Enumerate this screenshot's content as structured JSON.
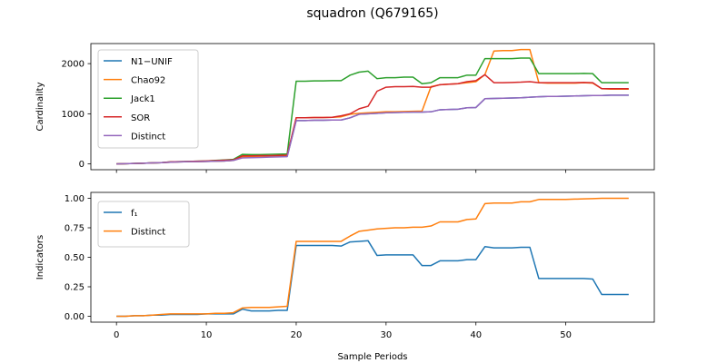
{
  "figure_title": "squadron (Q679165)",
  "chart_data": [
    {
      "type": "line",
      "panel": "top",
      "ylabel": "Cardinality",
      "xlabel": "",
      "xlim": [
        -2.85,
        59.85
      ],
      "ylim": [
        -115,
        2400
      ],
      "xticks": [
        0,
        10,
        20,
        30,
        40,
        50
      ],
      "yticks": [
        0,
        1000,
        2000
      ],
      "ytick_labels": [
        "0",
        "1000",
        "2000"
      ],
      "grid": false,
      "legend_position": "upper-left",
      "x": [
        0,
        1,
        2,
        3,
        4,
        5,
        6,
        7,
        8,
        9,
        10,
        11,
        12,
        13,
        14,
        15,
        16,
        17,
        18,
        19,
        20,
        21,
        22,
        23,
        24,
        25,
        26,
        27,
        28,
        29,
        30,
        31,
        32,
        33,
        34,
        35,
        36,
        37,
        38,
        39,
        40,
        41,
        42,
        43,
        44,
        45,
        46,
        47,
        48,
        49,
        50,
        51,
        52,
        53,
        54,
        55,
        56,
        57
      ],
      "series": [
        {
          "name": "N1−UNIF",
          "color": "#1f77b4",
          "values": [
            0,
            5,
            10,
            15,
            20,
            25,
            35,
            40,
            45,
            45,
            50,
            55,
            60,
            70,
            130,
            135,
            140,
            145,
            150,
            155,
            865,
            865,
            870,
            870,
            875,
            875,
            920,
            990,
            1000,
            1010,
            1020,
            1025,
            1030,
            1035,
            1035,
            1040,
            1080,
            1085,
            1090,
            1120,
            1125,
            1300,
            1305,
            1310,
            1315,
            1320,
            1330,
            1340,
            1345,
            1345,
            1350,
            1355,
            1360,
            1365,
            1365,
            1370,
            1370,
            1370
          ]
        },
        {
          "name": "Chao92",
          "color": "#ff7f0e",
          "values": [
            0,
            5,
            10,
            15,
            20,
            25,
            35,
            40,
            45,
            45,
            50,
            55,
            60,
            70,
            140,
            145,
            150,
            155,
            160,
            165,
            920,
            920,
            925,
            925,
            930,
            940,
            990,
            1010,
            1020,
            1030,
            1040,
            1040,
            1045,
            1050,
            1055,
            1540,
            1580,
            1590,
            1600,
            1620,
            1640,
            1780,
            2250,
            2260,
            2260,
            2280,
            2280,
            1620,
            1610,
            1610,
            1610,
            1610,
            1620,
            1610,
            1500,
            1490,
            1490,
            1490
          ]
        },
        {
          "name": "Jack1",
          "color": "#2ca02c",
          "values": [
            0,
            5,
            10,
            15,
            20,
            25,
            40,
            45,
            50,
            55,
            60,
            70,
            80,
            90,
            190,
            185,
            185,
            190,
            195,
            200,
            1650,
            1650,
            1655,
            1655,
            1660,
            1660,
            1770,
            1830,
            1850,
            1700,
            1720,
            1720,
            1730,
            1730,
            1600,
            1620,
            1720,
            1720,
            1720,
            1770,
            1770,
            2100,
            2100,
            2100,
            2100,
            2110,
            2110,
            1800,
            1800,
            1800,
            1800,
            1800,
            1805,
            1800,
            1620,
            1620,
            1620,
            1620
          ]
        },
        {
          "name": "SOR",
          "color": "#d62728",
          "values": [
            0,
            5,
            10,
            15,
            20,
            25,
            40,
            45,
            50,
            55,
            60,
            65,
            75,
            80,
            160,
            160,
            165,
            165,
            170,
            175,
            920,
            920,
            925,
            925,
            930,
            960,
            1000,
            1100,
            1150,
            1450,
            1530,
            1540,
            1540,
            1545,
            1530,
            1530,
            1580,
            1590,
            1600,
            1640,
            1660,
            1780,
            1620,
            1620,
            1625,
            1630,
            1640,
            1620,
            1620,
            1620,
            1620,
            1620,
            1625,
            1620,
            1500,
            1500,
            1500,
            1500
          ]
        },
        {
          "name": "Distinct",
          "color": "#9467bd",
          "values": [
            0,
            5,
            10,
            15,
            20,
            25,
            35,
            40,
            45,
            45,
            50,
            55,
            60,
            70,
            120,
            125,
            130,
            135,
            140,
            145,
            865,
            865,
            870,
            870,
            875,
            875,
            920,
            990,
            1000,
            1010,
            1020,
            1025,
            1030,
            1035,
            1035,
            1040,
            1080,
            1085,
            1090,
            1120,
            1125,
            1300,
            1305,
            1310,
            1315,
            1320,
            1330,
            1340,
            1345,
            1345,
            1350,
            1355,
            1360,
            1365,
            1365,
            1370,
            1370,
            1370
          ]
        }
      ]
    },
    {
      "type": "line",
      "panel": "bottom",
      "ylabel": "Indicators",
      "xlabel": "Sample Periods",
      "xlim": [
        -2.85,
        59.85
      ],
      "ylim": [
        -0.05,
        1.05
      ],
      "xticks": [
        0,
        10,
        20,
        30,
        40,
        50
      ],
      "yticks": [
        0.0,
        0.25,
        0.5,
        0.75,
        1.0
      ],
      "ytick_labels": [
        "0.00",
        "0.25",
        "0.50",
        "0.75",
        "1.00"
      ],
      "grid": false,
      "legend_position": "upper-left",
      "x": [
        0,
        1,
        2,
        3,
        4,
        5,
        6,
        7,
        8,
        9,
        10,
        11,
        12,
        13,
        14,
        15,
        16,
        17,
        18,
        19,
        20,
        21,
        22,
        23,
        24,
        25,
        26,
        27,
        28,
        29,
        30,
        31,
        32,
        33,
        34,
        35,
        36,
        37,
        38,
        39,
        40,
        41,
        42,
        43,
        44,
        45,
        46,
        47,
        48,
        49,
        50,
        51,
        52,
        53,
        54,
        55,
        56,
        57
      ],
      "series": [
        {
          "name": "f₁",
          "color": "#1f77b4",
          "values": [
            0.0,
            0.0,
            0.005,
            0.005,
            0.01,
            0.01,
            0.015,
            0.015,
            0.015,
            0.015,
            0.02,
            0.02,
            0.02,
            0.02,
            0.06,
            0.045,
            0.045,
            0.045,
            0.05,
            0.05,
            0.6,
            0.6,
            0.6,
            0.6,
            0.6,
            0.595,
            0.63,
            0.635,
            0.64,
            0.515,
            0.52,
            0.52,
            0.52,
            0.52,
            0.43,
            0.43,
            0.47,
            0.47,
            0.47,
            0.48,
            0.48,
            0.59,
            0.58,
            0.58,
            0.58,
            0.585,
            0.585,
            0.32,
            0.32,
            0.32,
            0.32,
            0.32,
            0.32,
            0.315,
            0.185,
            0.185,
            0.185,
            0.185
          ]
        },
        {
          "name": "Distinct",
          "color": "#ff7f0e",
          "values": [
            0.0,
            0.0,
            0.005,
            0.005,
            0.01,
            0.015,
            0.02,
            0.02,
            0.02,
            0.02,
            0.02,
            0.025,
            0.025,
            0.03,
            0.07,
            0.075,
            0.075,
            0.075,
            0.08,
            0.085,
            0.635,
            0.635,
            0.635,
            0.635,
            0.635,
            0.635,
            0.68,
            0.72,
            0.73,
            0.74,
            0.745,
            0.75,
            0.75,
            0.755,
            0.755,
            0.765,
            0.8,
            0.8,
            0.8,
            0.82,
            0.825,
            0.955,
            0.96,
            0.96,
            0.96,
            0.97,
            0.97,
            0.99,
            0.99,
            0.99,
            0.99,
            0.993,
            0.995,
            0.997,
            1.0,
            1.0,
            1.0,
            1.0
          ]
        }
      ]
    }
  ]
}
